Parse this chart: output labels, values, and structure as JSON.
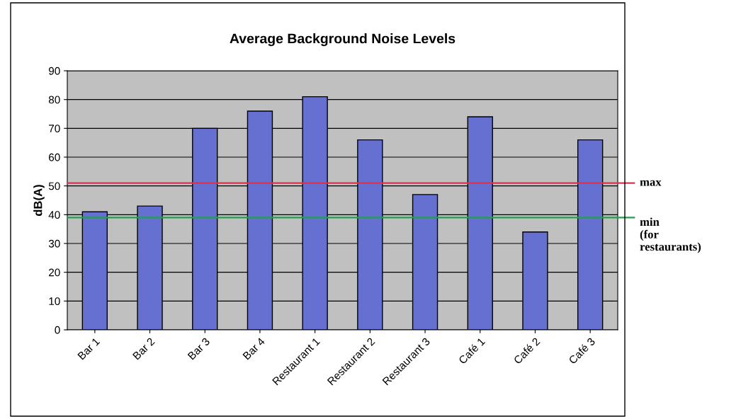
{
  "chart_data": {
    "type": "bar",
    "title": "Average Background Noise Levels",
    "ylabel": "dB(A)",
    "categories": [
      "Bar 1",
      "Bar 2",
      "Bar 3",
      "Bar 4",
      "Restaurant 1",
      "Restaurant 2",
      "Restaurant 3",
      "Café 1",
      "Café 2",
      "Café 3"
    ],
    "values": [
      41,
      43,
      70,
      76,
      81,
      66,
      47,
      74,
      34,
      66
    ],
    "color": "#6670d0",
    "ylim": [
      0,
      90
    ],
    "yticks": [
      0,
      10,
      20,
      30,
      40,
      50,
      60,
      70,
      80,
      90
    ],
    "grid": "y",
    "ref_lines": [
      {
        "axis": "y",
        "value": 51,
        "label": "max",
        "color": "#e0304a"
      },
      {
        "axis": "y",
        "value": 39,
        "label": "min\n(for\nrestaurants)",
        "color": "#20a050"
      }
    ]
  }
}
